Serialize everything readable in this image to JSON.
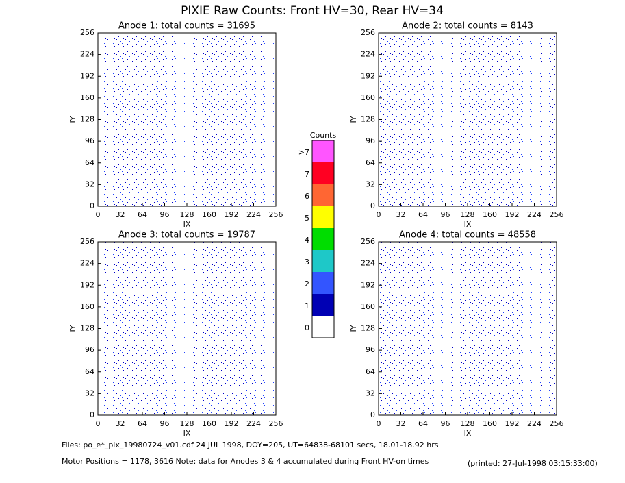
{
  "title": "PIXIE Raw Counts:  Front HV=30, Rear HV=34",
  "chart_data": [
    {
      "type": "heatmap",
      "title": "Anode 1: total counts = 31695",
      "xlabel": "IX",
      "ylabel": "IY",
      "xlim": [
        0,
        256
      ],
      "ylim": [
        0,
        256
      ],
      "xticks": [
        0,
        32,
        64,
        96,
        128,
        160,
        192,
        224,
        256
      ],
      "yticks": [
        0,
        32,
        64,
        96,
        128,
        160,
        192,
        224,
        256
      ]
    },
    {
      "type": "heatmap",
      "title": "Anode 2: total counts = 8143",
      "xlabel": "IX",
      "ylabel": "IY",
      "xlim": [
        0,
        256
      ],
      "ylim": [
        0,
        256
      ],
      "xticks": [
        0,
        32,
        64,
        96,
        128,
        160,
        192,
        224,
        256
      ],
      "yticks": [
        0,
        32,
        64,
        96,
        128,
        160,
        192,
        224,
        256
      ]
    },
    {
      "type": "heatmap",
      "title": "Anode 3: total counts = 19787",
      "xlabel": "IX",
      "ylabel": "IY",
      "xlim": [
        0,
        256
      ],
      "ylim": [
        0,
        256
      ],
      "xticks": [
        0,
        32,
        64,
        96,
        128,
        160,
        192,
        224,
        256
      ],
      "yticks": [
        0,
        32,
        64,
        96,
        128,
        160,
        192,
        224,
        256
      ]
    },
    {
      "type": "heatmap",
      "title": "Anode 4: total counts = 48558",
      "xlabel": "IX",
      "ylabel": "IY",
      "xlim": [
        0,
        256
      ],
      "ylim": [
        0,
        256
      ],
      "xticks": [
        0,
        32,
        64,
        96,
        128,
        160,
        192,
        224,
        256
      ],
      "yticks": [
        0,
        32,
        64,
        96,
        128,
        160,
        192,
        224,
        256
      ]
    }
  ],
  "colorbar": {
    "title": "Counts",
    "ticks": [
      0,
      1,
      2,
      3,
      4,
      5,
      6,
      7,
      {
        "value": 8,
        "label": ">7"
      }
    ],
    "colors": [
      "#ffffff",
      "#0000b4",
      "#3355ff",
      "#1ec8c8",
      "#00dd00",
      "#ffff00",
      "#ff6633",
      "#ff0022",
      "#ff55ff"
    ]
  },
  "footer": {
    "files": "Files: po_e*_pix_19980724_v01.cdf    24 JUL 1998, DOY=205, UT=64838-68101 secs, 18.01-18.92 hrs",
    "motor": "Motor Positions = 1178, 3616   Note: data for Anodes 3 & 4 accumulated during Front HV-on times",
    "printed": "(printed: 27-Jul-1998 03:15:33:00)"
  }
}
